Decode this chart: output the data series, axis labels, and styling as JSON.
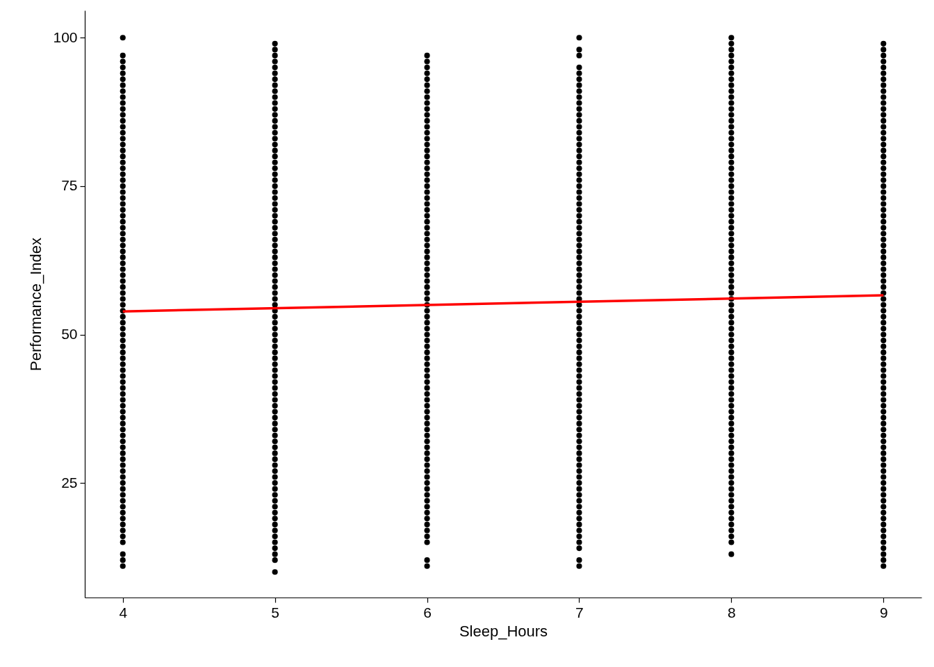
{
  "chart_data": {
    "type": "scatter",
    "xlabel": "Sleep_Hours",
    "ylabel": "Performance_Index",
    "xlim": [
      3.75,
      9.25
    ],
    "ylim": [
      5.7,
      104.6
    ],
    "xticks": [
      4,
      5,
      6,
      7,
      8,
      9
    ],
    "yticks": [
      25,
      50,
      75,
      100
    ],
    "grid": false,
    "marker": "circle",
    "series": [
      {
        "color": "#000000",
        "x": [
          4,
          4,
          4,
          4,
          4,
          4,
          4,
          4,
          4,
          4,
          4,
          4,
          4,
          4,
          4,
          4,
          4,
          4,
          4,
          4,
          4,
          4,
          4,
          4,
          4,
          4,
          4,
          4,
          4,
          4,
          4,
          4,
          4,
          4,
          4,
          4,
          4,
          4,
          4,
          4,
          4,
          4,
          4,
          4,
          4,
          4,
          4,
          4,
          4,
          4,
          4,
          4,
          4,
          4,
          4,
          4,
          4,
          4,
          4,
          4,
          4,
          4,
          4,
          4,
          4,
          4,
          4,
          4,
          4,
          4,
          4,
          4,
          4,
          4,
          4,
          4,
          4,
          4,
          4,
          4,
          4,
          4,
          4,
          4,
          4,
          4,
          4
        ],
        "values": [
          100,
          97,
          96,
          95,
          94,
          93,
          92,
          91,
          90,
          89,
          88,
          87,
          86,
          85,
          84,
          83,
          82,
          81,
          80,
          79,
          78,
          77,
          76,
          75,
          74,
          73,
          72,
          71,
          70,
          69,
          68,
          67,
          66,
          65,
          64,
          63,
          62,
          61,
          60,
          59,
          58,
          57,
          56,
          55,
          54,
          53,
          52,
          51,
          50,
          49,
          48,
          47,
          46,
          45,
          44,
          43,
          42,
          41,
          40,
          39,
          38,
          37,
          36,
          35,
          34,
          33,
          32,
          31,
          30,
          29,
          28,
          27,
          26,
          25,
          24,
          23,
          22,
          21,
          20,
          19,
          18,
          17,
          16,
          15,
          13,
          12,
          11
        ]
      },
      {
        "color": "#000000",
        "x": [
          5,
          5,
          5,
          5,
          5,
          5,
          5,
          5,
          5,
          5,
          5,
          5,
          5,
          5,
          5,
          5,
          5,
          5,
          5,
          5,
          5,
          5,
          5,
          5,
          5,
          5,
          5,
          5,
          5,
          5,
          5,
          5,
          5,
          5,
          5,
          5,
          5,
          5,
          5,
          5,
          5,
          5,
          5,
          5,
          5,
          5,
          5,
          5,
          5,
          5,
          5,
          5,
          5,
          5,
          5,
          5,
          5,
          5,
          5,
          5,
          5,
          5,
          5,
          5,
          5,
          5,
          5,
          5,
          5,
          5,
          5,
          5,
          5,
          5,
          5,
          5,
          5,
          5,
          5,
          5,
          5,
          5,
          5,
          5,
          5,
          5,
          5,
          5,
          5
        ],
        "values": [
          99,
          98,
          97,
          96,
          95,
          94,
          93,
          92,
          91,
          90,
          89,
          88,
          87,
          86,
          85,
          84,
          83,
          82,
          81,
          80,
          79,
          78,
          77,
          76,
          75,
          74,
          73,
          72,
          71,
          70,
          69,
          68,
          67,
          66,
          65,
          64,
          63,
          62,
          61,
          60,
          59,
          58,
          57,
          56,
          55,
          54,
          53,
          52,
          51,
          50,
          49,
          48,
          47,
          46,
          45,
          44,
          43,
          42,
          41,
          40,
          39,
          38,
          37,
          36,
          35,
          34,
          33,
          32,
          31,
          30,
          29,
          28,
          27,
          26,
          25,
          24,
          23,
          22,
          21,
          20,
          19,
          18,
          17,
          16,
          15,
          14,
          13,
          12,
          10
        ]
      },
      {
        "color": "#000000",
        "x": [
          6,
          6,
          6,
          6,
          6,
          6,
          6,
          6,
          6,
          6,
          6,
          6,
          6,
          6,
          6,
          6,
          6,
          6,
          6,
          6,
          6,
          6,
          6,
          6,
          6,
          6,
          6,
          6,
          6,
          6,
          6,
          6,
          6,
          6,
          6,
          6,
          6,
          6,
          6,
          6,
          6,
          6,
          6,
          6,
          6,
          6,
          6,
          6,
          6,
          6,
          6,
          6,
          6,
          6,
          6,
          6,
          6,
          6,
          6,
          6,
          6,
          6,
          6,
          6,
          6,
          6,
          6,
          6,
          6,
          6,
          6,
          6,
          6,
          6,
          6,
          6,
          6,
          6,
          6,
          6,
          6,
          6,
          6,
          6,
          6
        ],
        "values": [
          97,
          96,
          95,
          94,
          93,
          92,
          91,
          90,
          89,
          88,
          87,
          86,
          85,
          84,
          83,
          82,
          81,
          80,
          79,
          78,
          77,
          76,
          75,
          74,
          73,
          72,
          71,
          70,
          69,
          68,
          67,
          66,
          65,
          64,
          63,
          62,
          61,
          60,
          59,
          58,
          57,
          56,
          55,
          54,
          53,
          52,
          51,
          50,
          49,
          48,
          47,
          46,
          45,
          44,
          43,
          42,
          41,
          40,
          39,
          38,
          37,
          36,
          35,
          34,
          33,
          32,
          31,
          30,
          29,
          28,
          27,
          26,
          25,
          24,
          23,
          22,
          21,
          20,
          19,
          18,
          17,
          16,
          15,
          12,
          11
        ]
      },
      {
        "color": "#000000",
        "x": [
          7,
          7,
          7,
          7,
          7,
          7,
          7,
          7,
          7,
          7,
          7,
          7,
          7,
          7,
          7,
          7,
          7,
          7,
          7,
          7,
          7,
          7,
          7,
          7,
          7,
          7,
          7,
          7,
          7,
          7,
          7,
          7,
          7,
          7,
          7,
          7,
          7,
          7,
          7,
          7,
          7,
          7,
          7,
          7,
          7,
          7,
          7,
          7,
          7,
          7,
          7,
          7,
          7,
          7,
          7,
          7,
          7,
          7,
          7,
          7,
          7,
          7,
          7,
          7,
          7,
          7,
          7,
          7,
          7,
          7,
          7,
          7,
          7,
          7,
          7,
          7,
          7,
          7,
          7,
          7,
          7,
          7,
          7,
          7,
          7,
          7,
          7
        ],
        "values": [
          100,
          98,
          97,
          95,
          94,
          93,
          92,
          91,
          90,
          89,
          88,
          87,
          86,
          85,
          84,
          83,
          82,
          81,
          80,
          79,
          78,
          77,
          76,
          75,
          74,
          73,
          72,
          71,
          70,
          69,
          68,
          67,
          66,
          65,
          64,
          63,
          62,
          61,
          60,
          59,
          58,
          57,
          56,
          55,
          54,
          53,
          52,
          51,
          50,
          49,
          48,
          47,
          46,
          45,
          44,
          43,
          42,
          41,
          40,
          39,
          38,
          37,
          36,
          35,
          34,
          33,
          32,
          31,
          30,
          29,
          28,
          27,
          26,
          25,
          24,
          23,
          22,
          21,
          20,
          19,
          18,
          17,
          16,
          15,
          14,
          12,
          11
        ]
      },
      {
        "color": "#000000",
        "x": [
          8,
          8,
          8,
          8,
          8,
          8,
          8,
          8,
          8,
          8,
          8,
          8,
          8,
          8,
          8,
          8,
          8,
          8,
          8,
          8,
          8,
          8,
          8,
          8,
          8,
          8,
          8,
          8,
          8,
          8,
          8,
          8,
          8,
          8,
          8,
          8,
          8,
          8,
          8,
          8,
          8,
          8,
          8,
          8,
          8,
          8,
          8,
          8,
          8,
          8,
          8,
          8,
          8,
          8,
          8,
          8,
          8,
          8,
          8,
          8,
          8,
          8,
          8,
          8,
          8,
          8,
          8,
          8,
          8,
          8,
          8,
          8,
          8,
          8,
          8,
          8,
          8,
          8,
          8,
          8,
          8,
          8,
          8,
          8,
          8,
          8,
          8
        ],
        "values": [
          100,
          99,
          98,
          97,
          96,
          95,
          94,
          93,
          92,
          91,
          90,
          89,
          88,
          87,
          86,
          85,
          84,
          83,
          82,
          81,
          80,
          79,
          78,
          77,
          76,
          75,
          74,
          73,
          72,
          71,
          70,
          69,
          68,
          67,
          66,
          65,
          64,
          63,
          62,
          61,
          60,
          59,
          58,
          57,
          56,
          55,
          54,
          53,
          52,
          51,
          50,
          49,
          48,
          47,
          46,
          45,
          44,
          43,
          42,
          41,
          40,
          39,
          38,
          37,
          36,
          35,
          34,
          33,
          32,
          31,
          30,
          29,
          28,
          27,
          26,
          25,
          24,
          23,
          22,
          21,
          20,
          19,
          18,
          17,
          16,
          15,
          13
        ]
      },
      {
        "color": "#000000",
        "x": [
          9,
          9,
          9,
          9,
          9,
          9,
          9,
          9,
          9,
          9,
          9,
          9,
          9,
          9,
          9,
          9,
          9,
          9,
          9,
          9,
          9,
          9,
          9,
          9,
          9,
          9,
          9,
          9,
          9,
          9,
          9,
          9,
          9,
          9,
          9,
          9,
          9,
          9,
          9,
          9,
          9,
          9,
          9,
          9,
          9,
          9,
          9,
          9,
          9,
          9,
          9,
          9,
          9,
          9,
          9,
          9,
          9,
          9,
          9,
          9,
          9,
          9,
          9,
          9,
          9,
          9,
          9,
          9,
          9,
          9,
          9,
          9,
          9,
          9,
          9,
          9,
          9,
          9,
          9,
          9,
          9,
          9,
          9,
          9,
          9,
          9,
          9,
          9,
          9
        ],
        "values": [
          99,
          98,
          97,
          96,
          95,
          94,
          93,
          92,
          91,
          90,
          89,
          88,
          87,
          86,
          85,
          84,
          83,
          82,
          81,
          80,
          79,
          78,
          77,
          76,
          75,
          74,
          73,
          72,
          71,
          70,
          69,
          68,
          67,
          66,
          65,
          64,
          63,
          62,
          61,
          60,
          59,
          58,
          57,
          56,
          55,
          54,
          53,
          52,
          51,
          50,
          49,
          48,
          47,
          46,
          45,
          44,
          43,
          42,
          41,
          40,
          39,
          38,
          37,
          36,
          35,
          34,
          33,
          32,
          31,
          30,
          29,
          28,
          27,
          26,
          25,
          24,
          23,
          22,
          21,
          20,
          19,
          18,
          17,
          16,
          15,
          14,
          13,
          12,
          11
        ]
      },
      {
        "type": "line",
        "marker": "none",
        "color": "#ff0000",
        "x": [
          4,
          9
        ],
        "values": [
          53.9,
          56.6
        ]
      }
    ]
  }
}
